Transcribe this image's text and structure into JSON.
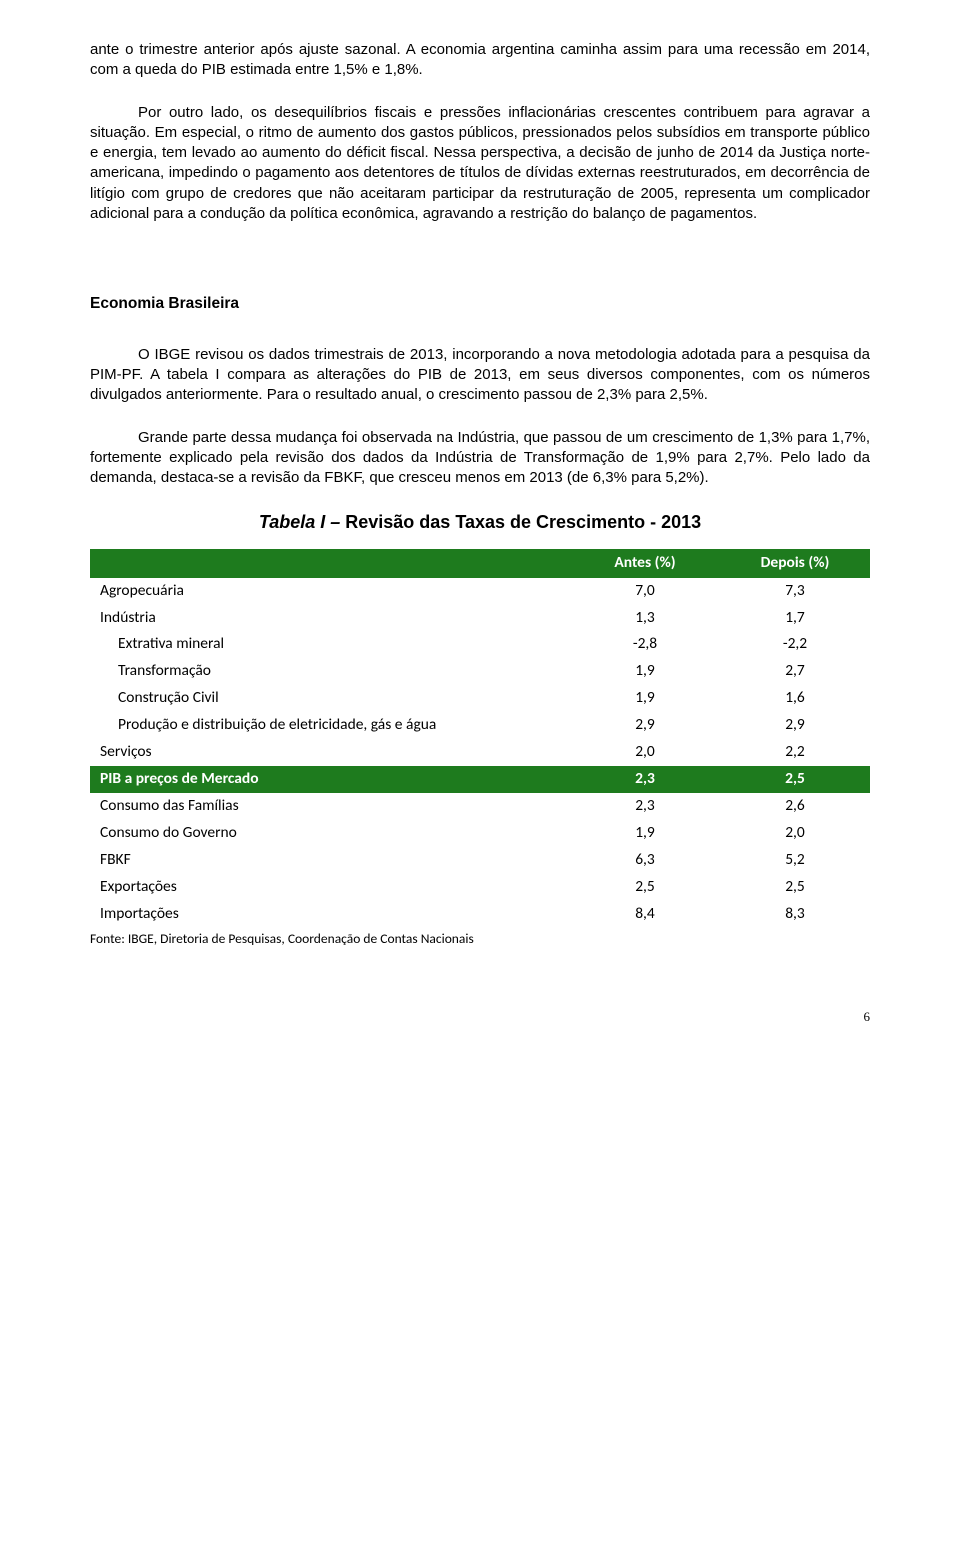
{
  "paragraphs": {
    "p1": "ante o trimestre anterior após ajuste sazonal. A economia argentina caminha assim para uma recessão em 2014, com a queda do PIB estimada entre 1,5% e 1,8%.",
    "p2": "Por outro lado, os desequilíbrios fiscais e pressões inflacionárias crescentes contribuem para agravar a situação. Em especial, o ritmo de aumento dos gastos públicos, pressionados pelos subsídios em transporte público e energia, tem levado ao aumento do déficit fiscal. Nessa perspectiva, a decisão de junho de 2014 da Justiça norte-americana, impedindo o pagamento aos detentores de títulos de dívidas externas reestruturados, em decorrência de litígio com grupo de credores que não aceitaram participar da restruturação de 2005, representa um complicador adicional para a condução da política econômica, agravando a restrição do balanço de pagamentos.",
    "p3": "O IBGE revisou os dados trimestrais de 2013, incorporando a nova metodologia adotada para a pesquisa da PIM-PF.  A tabela I compara as alterações do PIB de 2013, em seus diversos componentes, com os números divulgados anteriormente. Para o resultado anual, o crescimento passou de 2,3% para 2,5%.",
    "p4": "Grande parte dessa mudança foi observada na Indústria, que passou de um crescimento de 1,3% para 1,7%, fortemente explicado pela revisão dos dados da Indústria de Transformação de 1,9% para 2,7%. Pelo lado da demanda, destaca-se a revisão da FBKF, que cresceu menos em 2013 (de 6,3% para 5,2%)."
  },
  "section_title": "Economia Brasileira",
  "table": {
    "title_prefix": "Tabela I – ",
    "title_rest": "Revisão das Taxas de Crescimento - 2013",
    "header_bg": "#1e7b1e",
    "highlight_bg": "#1e7b1e",
    "columns": [
      "",
      "Antes (%)",
      "Depois (%)"
    ],
    "rows": [
      {
        "label": "Agropecuária",
        "a": "7,0",
        "d": "7,3",
        "indent": 0,
        "hl": false
      },
      {
        "label": "Indústria",
        "a": "1,3",
        "d": "1,7",
        "indent": 0,
        "hl": false
      },
      {
        "label": "Extrativa mineral",
        "a": "-2,8",
        "d": "-2,2",
        "indent": 1,
        "hl": false
      },
      {
        "label": "Transformação",
        "a": "1,9",
        "d": "2,7",
        "indent": 1,
        "hl": false
      },
      {
        "label": "Construção Civil",
        "a": "1,9",
        "d": "1,6",
        "indent": 1,
        "hl": false
      },
      {
        "label": "Produção e distribuição de eletricidade, gás e água",
        "a": "2,9",
        "d": "2,9",
        "indent": 1,
        "hl": false
      },
      {
        "label": "Serviços",
        "a": "2,0",
        "d": "2,2",
        "indent": 0,
        "hl": false
      },
      {
        "label": "PIB a preços de Mercado",
        "a": "2,3",
        "d": "2,5",
        "indent": 0,
        "hl": true
      },
      {
        "label": "Consumo das Famílias",
        "a": "2,3",
        "d": "2,6",
        "indent": 0,
        "hl": false
      },
      {
        "label": "Consumo do Governo",
        "a": "1,9",
        "d": "2,0",
        "indent": 0,
        "hl": false
      },
      {
        "label": "FBKF",
        "a": "6,3",
        "d": "5,2",
        "indent": 0,
        "hl": false
      },
      {
        "label": "Exportações",
        "a": "2,5",
        "d": "2,5",
        "indent": 0,
        "hl": false
      },
      {
        "label": "Importações",
        "a": "8,4",
        "d": "8,3",
        "indent": 0,
        "hl": false
      }
    ],
    "footnote": "Fonte: IBGE, Diretoria de Pesquisas, Coordenação de Contas Nacionais"
  },
  "page_number": "6"
}
